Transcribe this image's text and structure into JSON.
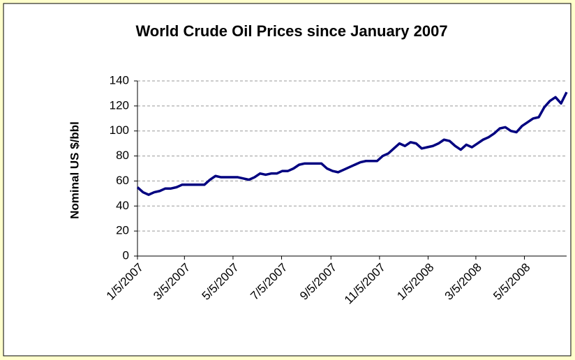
{
  "chart_data": {
    "type": "line",
    "title": "World Crude Oil Prices since January 2007",
    "y_label": "Nominal US $/bbl",
    "x": [
      "1/5/2007",
      "1/12/2007",
      "1/19/2007",
      "1/26/2007",
      "2/2/2007",
      "2/9/2007",
      "2/16/2007",
      "2/23/2007",
      "3/2/2007",
      "3/9/2007",
      "3/16/2007",
      "3/23/2007",
      "3/30/2007",
      "4/6/2007",
      "4/13/2007",
      "4/20/2007",
      "4/27/2007",
      "5/4/2007",
      "5/11/2007",
      "5/18/2007",
      "5/25/2007",
      "6/1/2007",
      "6/8/2007",
      "6/15/2007",
      "6/22/2007",
      "6/29/2007",
      "7/6/2007",
      "7/13/2007",
      "7/20/2007",
      "7/27/2007",
      "8/3/2007",
      "8/10/2007",
      "8/17/2007",
      "8/24/2007",
      "8/31/2007",
      "9/7/2007",
      "9/14/2007",
      "9/21/2007",
      "9/28/2007",
      "10/5/2007",
      "10/12/2007",
      "10/19/2007",
      "10/26/2007",
      "11/2/2007",
      "11/9/2007",
      "11/16/2007",
      "11/23/2007",
      "11/30/2007",
      "12/7/2007",
      "12/14/2007",
      "12/21/2007",
      "12/28/2007",
      "1/4/2008",
      "1/11/2008",
      "1/18/2008",
      "1/25/2008",
      "2/1/2008",
      "2/8/2008",
      "2/15/2008",
      "2/22/2008",
      "2/29/2008",
      "3/7/2008",
      "3/14/2008",
      "3/21/2008",
      "3/28/2008",
      "4/4/2008",
      "4/11/2008",
      "4/18/2008",
      "4/25/2008",
      "5/2/2008",
      "5/9/2008",
      "5/16/2008",
      "5/23/2008",
      "5/30/2008",
      "6/6/2008",
      "6/13/2008",
      "6/20/2008",
      "6/27/2008"
    ],
    "series": [
      {
        "name": "World Crude Oil Price",
        "color": "#000080",
        "values": [
          55,
          51,
          49,
          51,
          52,
          54,
          54,
          55,
          57,
          57,
          57,
          57,
          57,
          61,
          64,
          63,
          63,
          63,
          63,
          62,
          61,
          63,
          66,
          65,
          66,
          66,
          68,
          68,
          70,
          73,
          74,
          74,
          74,
          74,
          70,
          68,
          67,
          69,
          71,
          73,
          75,
          76,
          76,
          76,
          80,
          82,
          86,
          90,
          88,
          91,
          90,
          86,
          87,
          88,
          90,
          93,
          92,
          88,
          85,
          89,
          87,
          90,
          93,
          95,
          98,
          102,
          103,
          100,
          99,
          104,
          107,
          110,
          111,
          119,
          124,
          127,
          122,
          131
        ]
      }
    ],
    "xlim": [
      "1/5/2007",
      "6/27/2008"
    ],
    "xticks": [
      "1/5/2007",
      "3/5/2007",
      "5/5/2007",
      "7/5/2007",
      "9/5/2007",
      "11/5/2007",
      "1/5/2008",
      "3/5/2008",
      "5/5/2008"
    ],
    "ylim": [
      0,
      140
    ],
    "yticks": [
      0,
      20,
      40,
      60,
      80,
      100,
      120,
      140
    ],
    "grid": true
  }
}
